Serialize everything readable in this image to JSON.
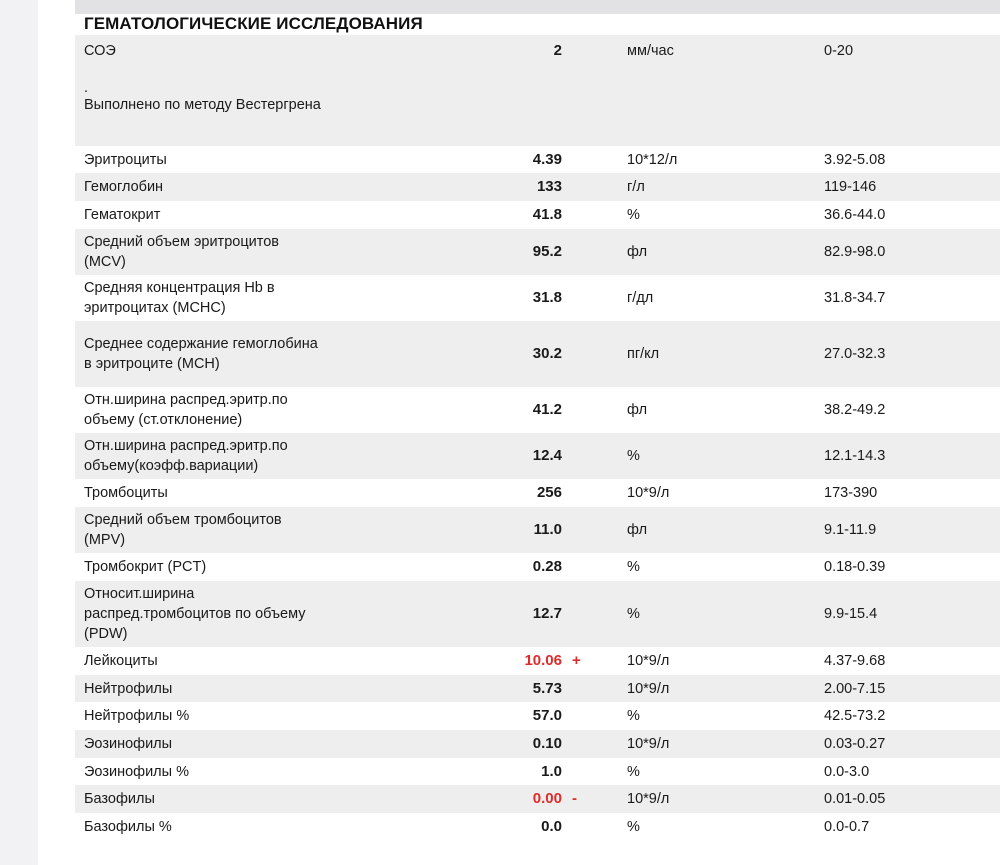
{
  "section_title": "ГЕМАТОЛОГИЧЕСКИЕ ИССЛЕДОВАНИЯ",
  "soe": {
    "name": "СОЭ",
    "value": "2",
    "unit": "мм/час",
    "ref": "0-20",
    "note_dot": ".",
    "note": "Выполнено по методу Вестергрена"
  },
  "rows": [
    {
      "name": "Эритроциты",
      "value": "4.39",
      "flag": "",
      "unit": "10*12/л",
      "ref": "3.92-5.08"
    },
    {
      "name": "Гемоглобин",
      "value": "133",
      "flag": "",
      "unit": "г/л",
      "ref": "119-146"
    },
    {
      "name": "Гематокрит",
      "value": "41.8",
      "flag": "",
      "unit": "%",
      "ref": "36.6-44.0"
    },
    {
      "name": "Средний объем эритроцитов (MCV)",
      "value": "95.2",
      "flag": "",
      "unit": "фл",
      "ref": "82.9-98.0"
    },
    {
      "name": "Средняя концентрация Hb в эритроцитах (MCHC)",
      "value": "31.8",
      "flag": "",
      "unit": "г/дл",
      "ref": "31.8-34.7"
    },
    {
      "name": "Среднее содержание гемоглобина в эритроците (MCH)",
      "value": "30.2",
      "flag": "",
      "unit": "пг/кл",
      "ref": "27.0-32.3"
    },
    {
      "name": "Отн.ширина распред.эритр.по объему (ст.отклонение)",
      "value": "41.2",
      "flag": "",
      "unit": "фл",
      "ref": "38.2-49.2"
    },
    {
      "name": "Отн.ширина распред.эритр.по объему(коэфф.вариации)",
      "value": "12.4",
      "flag": "",
      "unit": "%",
      "ref": "12.1-14.3"
    },
    {
      "name": "Тромбоциты",
      "value": "256",
      "flag": "",
      "unit": "10*9/л",
      "ref": "173-390"
    },
    {
      "name": "Средний объем тромбоцитов (MPV)",
      "value": "11.0",
      "flag": "",
      "unit": "фл",
      "ref": "9.1-11.9"
    },
    {
      "name": "Тромбокрит (PCT)",
      "value": "0.28",
      "flag": "",
      "unit": "%",
      "ref": "0.18-0.39"
    },
    {
      "name": "Относит.ширина распред.тромбоцитов по объему (PDW)",
      "value": "12.7",
      "flag": "",
      "unit": "%",
      "ref": "9.9-15.4"
    },
    {
      "name": "Лейкоциты",
      "value": "10.06",
      "flag": "+",
      "unit": "10*9/л",
      "ref": "4.37-9.68"
    },
    {
      "name": "Нейтрофилы",
      "value": "5.73",
      "flag": "",
      "unit": "10*9/л",
      "ref": "2.00-7.15"
    },
    {
      "name": "Нейтрофилы %",
      "value": "57.0",
      "flag": "",
      "unit": "%",
      "ref": "42.5-73.2"
    },
    {
      "name": "Эозинофилы",
      "value": "0.10",
      "flag": "",
      "unit": "10*9/л",
      "ref": "0.03-0.27"
    },
    {
      "name": "Эозинофилы %",
      "value": "1.0",
      "flag": "",
      "unit": "%",
      "ref": "0.0-3.0"
    },
    {
      "name": "Базофилы",
      "value": "0.00",
      "flag": "-",
      "unit": "10*9/л",
      "ref": "0.01-0.05"
    },
    {
      "name": "Базофилы %",
      "value": "0.0",
      "flag": "",
      "unit": "%",
      "ref": "0.0-0.7"
    }
  ],
  "colors": {
    "abnormal": "#e02b2b",
    "shade": "#eeeeee"
  }
}
